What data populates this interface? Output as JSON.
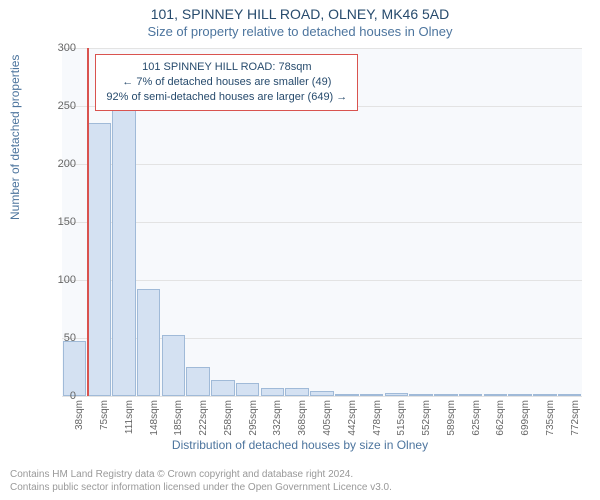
{
  "title": "101, SPINNEY HILL ROAD, OLNEY, MK46 5AD",
  "subtitle": "Size of property relative to detached houses in Olney",
  "ylabel": "Number of detached properties",
  "xlabel": "Distribution of detached houses by size in Olney",
  "footer_line1": "Contains HM Land Registry data © Crown copyright and database right 2024.",
  "footer_line2": "Contains public sector information licensed under the Open Government Licence v3.0.",
  "chart": {
    "type": "histogram",
    "background_color": "#f7f9fc",
    "grid_color": "#e3e3e3",
    "bar_fill": "#d4e1f2",
    "bar_stroke": "#a0bad8",
    "ref_line_color": "#d9534f",
    "legend_border": "#d9534f",
    "axis_text_color": "#666666",
    "label_color": "#4d759e",
    "title_color": "#274b6d",
    "ylim": [
      0,
      300
    ],
    "yticks": [
      0,
      50,
      100,
      150,
      200,
      250,
      300
    ],
    "x_categories": [
      "38sqm",
      "75sqm",
      "111sqm",
      "148sqm",
      "185sqm",
      "222sqm",
      "258sqm",
      "295sqm",
      "332sqm",
      "368sqm",
      "405sqm",
      "442sqm",
      "478sqm",
      "515sqm",
      "552sqm",
      "589sqm",
      "625sqm",
      "662sqm",
      "699sqm",
      "735sqm",
      "772sqm"
    ],
    "values": [
      47,
      235,
      255,
      92,
      53,
      25,
      14,
      11,
      7,
      7,
      4,
      2,
      1,
      3,
      0,
      0,
      1,
      0,
      1,
      0,
      1
    ],
    "reference_index": 1,
    "bar_gap_ratio": 0.05
  },
  "legend": {
    "line1": "101 SPINNEY HILL ROAD: 78sqm",
    "line2": "← 7% of detached houses are smaller (49)",
    "line3": "92% of semi-detached houses are larger (649) →"
  }
}
